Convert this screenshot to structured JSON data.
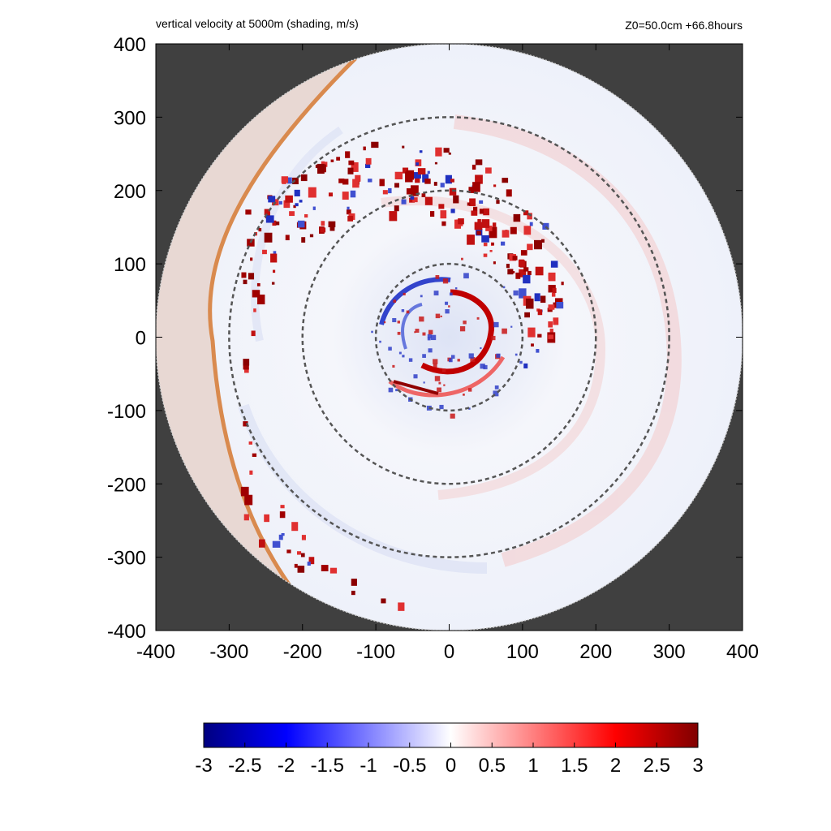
{
  "chart_data": {
    "type": "heatmap",
    "title": "vertical velocity at 5000m (shading, m/s)",
    "subtitle": "Z0=50.0cm  +66.8hours",
    "xlim": [
      -400,
      400
    ],
    "ylim": [
      -400,
      400
    ],
    "x_ticks": [
      "-400",
      "-300",
      "-200",
      "-100",
      "0",
      "100",
      "200",
      "300",
      "400"
    ],
    "y_ticks": [
      "400",
      "300",
      "200",
      "100",
      "0",
      "-100",
      "-200",
      "-300",
      "-400"
    ],
    "domain_radius": 400,
    "range_rings": [
      100,
      200,
      300
    ],
    "colorbar": {
      "range": [
        -3,
        3
      ],
      "ticks": [
        "-3",
        "-2.5",
        "-2",
        "-1.5",
        "-1",
        "-0.5",
        "0",
        "0.5",
        "1",
        "1.5",
        "2",
        "2.5",
        "3"
      ],
      "colors": [
        "#000080",
        "#0000ff",
        "#ffffff",
        "#ff0000",
        "#800000"
      ]
    },
    "colors": {
      "background_outside_domain": "#404040",
      "ring": "#555555",
      "coastline": "#d98a4e",
      "land_tint": "#e8cfc0"
    }
  }
}
